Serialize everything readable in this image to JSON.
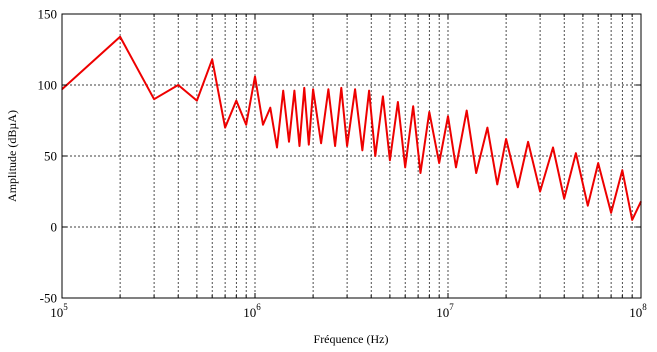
{
  "chart_data": {
    "type": "line",
    "title": "",
    "xlabel": "Fréquence (Hz)",
    "ylabel": "Amplitude (dBµA)",
    "xscale": "log",
    "xlim": [
      100000,
      100000000
    ],
    "ylim": [
      -50,
      150
    ],
    "grid": true,
    "legend": "none",
    "x_ticks": [
      {
        "mantissa": "10",
        "exponent": "5",
        "value": 100000
      },
      {
        "mantissa": "10",
        "exponent": "6",
        "value": 1000000
      },
      {
        "mantissa": "10",
        "exponent": "7",
        "value": 10000000
      },
      {
        "mantissa": "10",
        "exponent": "8",
        "value": 100000000
      }
    ],
    "y_ticks": [
      "-50",
      "0",
      "50",
      "100",
      "150"
    ],
    "series_color": "#ee0000",
    "series": [
      {
        "x": [
          100000,
          200000,
          300000,
          400000,
          500000,
          600000,
          700000,
          800000,
          900000,
          1000000,
          1100000,
          1200000,
          1300000,
          1400000,
          1500000,
          1600000,
          1700000,
          1800000,
          1900000,
          2000000,
          2200000,
          2400000,
          2600000,
          2800000,
          3000000,
          3300000,
          3600000,
          3900000,
          4200000,
          4600000,
          5000000,
          5500000,
          6000000,
          6600000,
          7200000,
          8000000,
          9000000,
          10000000,
          11000000,
          12500000,
          14000000,
          16000000,
          18000000,
          20000000,
          23000000,
          26000000,
          30000000,
          35000000,
          40000000,
          46000000,
          53000000,
          60000000,
          70000000,
          80000000,
          90000000,
          100000000
        ],
        "values": [
          97,
          134,
          90,
          100,
          89,
          118,
          70,
          89,
          72,
          106,
          72,
          84,
          56,
          96,
          60,
          96,
          57,
          98,
          58,
          97,
          59,
          97,
          57,
          98,
          57,
          97,
          54,
          96,
          50,
          92,
          47,
          88,
          42,
          85,
          38,
          81,
          45,
          78,
          42,
          82,
          38,
          70,
          30,
          62,
          28,
          60,
          25,
          56,
          20,
          52,
          15,
          45,
          10,
          40,
          5,
          18
        ]
      }
    ]
  }
}
